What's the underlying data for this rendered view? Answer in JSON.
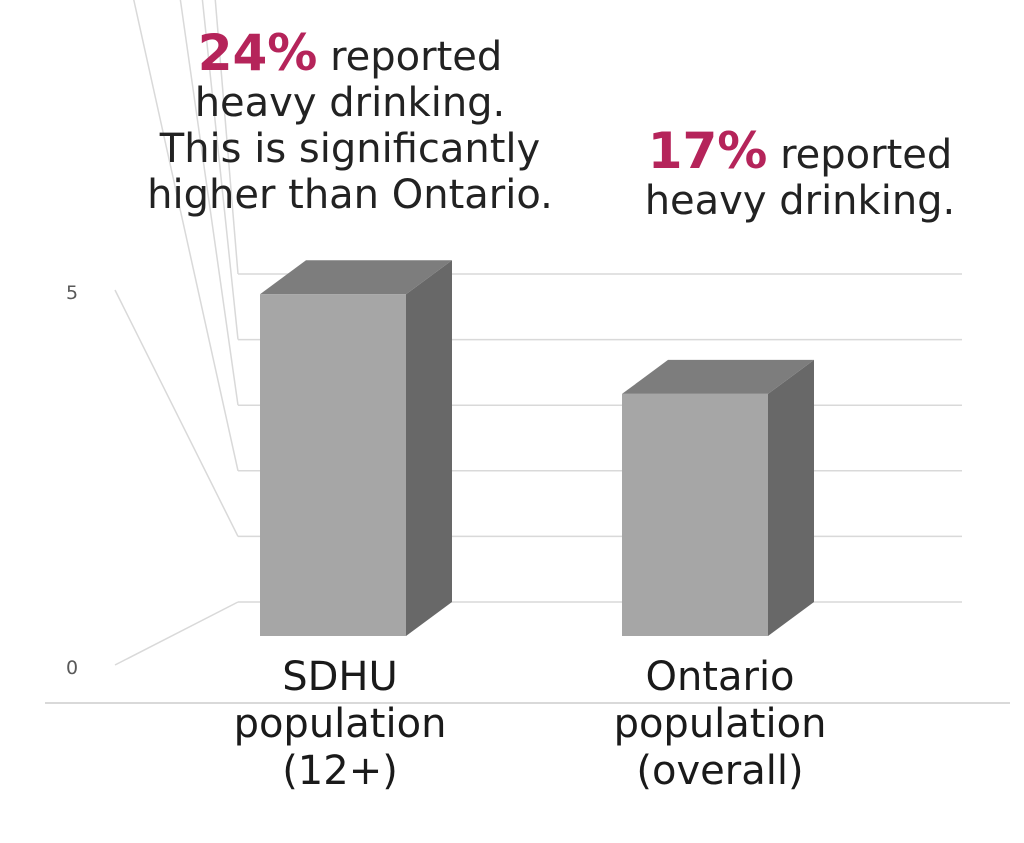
{
  "chart_data": {
    "type": "bar",
    "style": "3d-column",
    "categories": [
      "SDHU population (12+)",
      "Ontario population (overall)"
    ],
    "category_lines": [
      [
        "SDHU",
        "population",
        "(12+)"
      ],
      [
        "Ontario",
        "population",
        "(overall)"
      ]
    ],
    "values": [
      24,
      17
    ],
    "ylim": [
      0,
      25
    ],
    "yticks": [
      0,
      5,
      10,
      15,
      20,
      25
    ],
    "grid": true,
    "legend": "none",
    "annotations": [
      {
        "highlight": "24%",
        "text": " reported heavy drinking. This is significantly higher than Ontario.",
        "lines": [
          " reported",
          "heavy drinking.",
          "This is significantly",
          "higher than Ontario."
        ]
      },
      {
        "highlight": "17%",
        "text": " reported heavy drinking.",
        "lines": [
          " reported",
          "heavy drinking."
        ]
      }
    ],
    "colors": {
      "highlight": "#b5245a",
      "bar_front": "#a6a6a6",
      "bar_side": "#686868",
      "bar_top": "#7d7d7d",
      "grid": "#d9d9d9",
      "tick_text": "#595959"
    }
  }
}
